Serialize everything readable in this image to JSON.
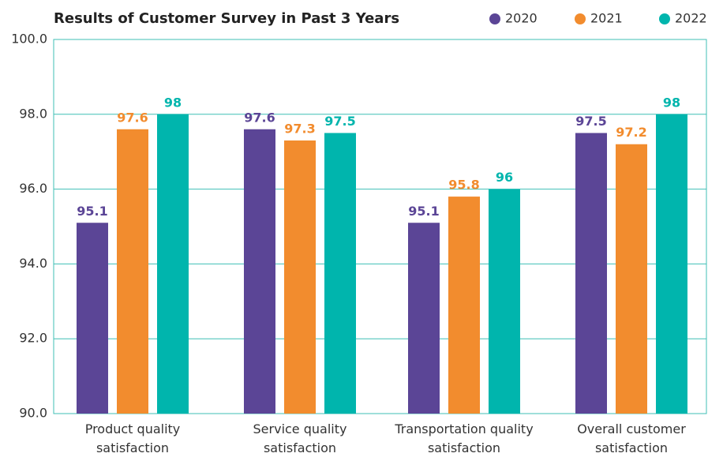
{
  "chart_data": {
    "type": "bar",
    "title": "Results of Customer Survey in Past 3 Years",
    "categories": [
      "Product quality\nsatisfaction",
      "Service quality\nsatisfaction",
      "Transportation quality\nsatisfaction",
      "Overall customer\nsatisfaction"
    ],
    "series": [
      {
        "name": "2020",
        "color": "#5b4596",
        "values": [
          95.1,
          97.6,
          95.1,
          97.5
        ]
      },
      {
        "name": "2021",
        "color": "#f28c2e",
        "values": [
          97.6,
          97.3,
          95.8,
          97.2
        ]
      },
      {
        "name": "2022",
        "color": "#00b5ad",
        "values": [
          98.0,
          97.5,
          96.0,
          98.0
        ]
      }
    ],
    "ylim": [
      90,
      100
    ],
    "yticks": [
      {
        "value": 90,
        "label": "90.0"
      },
      {
        "value": 92,
        "label": "92.0"
      },
      {
        "value": 94,
        "label": "94.0"
      },
      {
        "value": 96,
        "label": "96.0"
      },
      {
        "value": 98,
        "label": "98.0"
      },
      {
        "value": 100,
        "label": "100.0"
      }
    ],
    "grid": true,
    "legend": "top-right"
  }
}
